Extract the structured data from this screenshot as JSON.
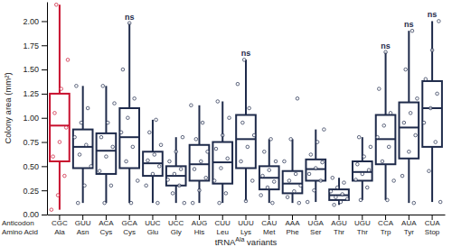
{
  "chart_data": {
    "type": "box",
    "ylabel": "Colony area (mm²)",
    "xlabel": [
      "tRNA",
      "Ala",
      " variants"
    ],
    "row_labels": [
      "Anticodon",
      "Amino Acid"
    ],
    "categories": [
      "CGC",
      "GUU",
      "ACA",
      "GCA",
      "UUC",
      "UCC",
      "AUG",
      "CUU",
      "UUU",
      "CAU",
      "AAA",
      "UGA",
      "AGU",
      "UGU",
      "CCA",
      "AUA",
      "CUA"
    ],
    "amino_acids": [
      "Ala",
      "Asn",
      "Cys",
      "Cys",
      "Glu",
      "Gly",
      "His",
      "Leu",
      "Lys",
      "Met",
      "Phe",
      "Ser",
      "Thr",
      "Thr",
      "Trp",
      "Tyr",
      "Stop"
    ],
    "colors": [
      "#c8102e",
      "#1e2a4a",
      "#1e2a4a",
      "#1e2a4a",
      "#1e2a4a",
      "#1e2a4a",
      "#1e2a4a",
      "#1e2a4a",
      "#1e2a4a",
      "#1e2a4a",
      "#1e2a4a",
      "#1e2a4a",
      "#1e2a4a",
      "#1e2a4a",
      "#1e2a4a",
      "#1e2a4a",
      "#1e2a4a"
    ],
    "min": [
      0.05,
      0.12,
      0.12,
      0.12,
      0.12,
      0.12,
      0.12,
      0.12,
      0.14,
      0.12,
      0.12,
      0.13,
      0.1,
      0.15,
      0.15,
      0.12,
      0.13
    ],
    "q1": [
      0.55,
      0.48,
      0.42,
      0.48,
      0.4,
      0.3,
      0.35,
      0.32,
      0.48,
      0.26,
      0.22,
      0.35,
      0.15,
      0.35,
      0.52,
      0.58,
      0.7
    ],
    "median": [
      0.92,
      0.7,
      0.66,
      0.8,
      0.53,
      0.4,
      0.52,
      0.54,
      0.78,
      0.38,
      0.32,
      0.47,
      0.2,
      0.44,
      0.78,
      0.9,
      1.1
    ],
    "q3": [
      1.25,
      0.88,
      0.84,
      1.1,
      0.65,
      0.5,
      0.72,
      0.75,
      1.03,
      0.5,
      0.45,
      0.57,
      0.26,
      0.55,
      1.03,
      1.16,
      1.38
    ],
    "max": [
      2.17,
      1.33,
      1.33,
      1.98,
      0.98,
      0.8,
      1.13,
      1.17,
      1.6,
      0.78,
      0.78,
      0.88,
      0.38,
      0.8,
      1.68,
      1.9,
      2.0
    ],
    "points": [
      [
        0.05,
        0.2,
        0.4,
        0.6,
        0.75,
        0.9,
        1.05,
        1.3,
        1.6,
        2.17
      ],
      [
        0.12,
        0.3,
        0.5,
        0.62,
        0.72,
        0.8,
        0.95,
        1.1,
        1.33
      ],
      [
        0.12,
        0.3,
        0.45,
        0.6,
        0.7,
        0.8,
        0.95,
        1.15,
        1.33
      ],
      [
        0.12,
        0.35,
        0.55,
        0.7,
        0.85,
        1.0,
        1.2,
        1.5,
        1.98
      ],
      [
        0.12,
        0.3,
        0.42,
        0.5,
        0.56,
        0.62,
        0.72,
        0.85,
        0.98
      ],
      [
        0.12,
        0.22,
        0.3,
        0.36,
        0.42,
        0.47,
        0.55,
        0.65,
        0.8
      ],
      [
        0.12,
        0.25,
        0.38,
        0.47,
        0.55,
        0.65,
        0.78,
        0.95,
        1.13
      ],
      [
        0.12,
        0.22,
        0.35,
        0.48,
        0.58,
        0.68,
        0.82,
        1.0,
        1.17
      ],
      [
        0.14,
        0.35,
        0.55,
        0.7,
        0.82,
        0.95,
        1.1,
        1.35,
        1.6
      ],
      [
        0.12,
        0.2,
        0.28,
        0.34,
        0.4,
        0.46,
        0.55,
        0.65,
        0.78
      ],
      [
        0.12,
        0.18,
        0.24,
        0.3,
        0.35,
        0.42,
        0.55,
        0.78,
        1.2
      ],
      [
        0.13,
        0.25,
        0.35,
        0.42,
        0.48,
        0.54,
        0.62,
        0.75,
        0.88
      ],
      [
        0.1,
        0.13,
        0.16,
        0.18,
        0.21,
        0.24,
        0.28,
        0.33,
        0.38
      ],
      [
        0.15,
        0.28,
        0.36,
        0.42,
        0.46,
        0.52,
        0.6,
        0.7,
        0.8
      ],
      [
        0.15,
        0.35,
        0.55,
        0.7,
        0.8,
        0.92,
        1.05,
        1.3,
        1.68
      ],
      [
        0.12,
        0.4,
        0.65,
        0.82,
        0.95,
        1.05,
        1.2,
        1.5,
        1.9
      ],
      [
        0.13,
        0.45,
        0.75,
        0.95,
        1.1,
        1.25,
        1.4,
        1.7,
        2.0
      ]
    ],
    "annotations": [
      null,
      null,
      null,
      "ns",
      null,
      null,
      null,
      null,
      "ns",
      null,
      null,
      null,
      null,
      null,
      "ns",
      "ns",
      "ns"
    ],
    "ylim": [
      0,
      2.2
    ],
    "yticks": [
      {
        "value": 0,
        "label": "0.00"
      },
      {
        "value": 0.25,
        "label": "0.25"
      },
      {
        "value": 0.5,
        "label": "0.50"
      },
      {
        "value": 0.75,
        "label": "0.75"
      },
      {
        "value": 1,
        "label": "1.00"
      },
      {
        "value": 1.25,
        "label": "1.25"
      },
      {
        "value": 1.5,
        "label": "1.50"
      },
      {
        "value": 1.75,
        "label": "1.75"
      },
      {
        "value": 2,
        "label": "2.00"
      }
    ],
    "grid": false
  }
}
